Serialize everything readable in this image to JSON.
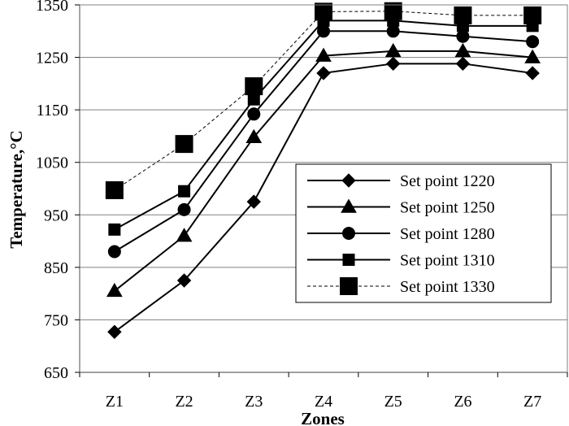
{
  "chart_data": {
    "type": "line",
    "title": "",
    "xlabel": "Zones",
    "ylabel": "Temperature,°C",
    "categories": [
      "Z1",
      "Z2",
      "Z3",
      "Z4",
      "Z5",
      "Z6",
      "Z7"
    ],
    "ylim": [
      650,
      1350
    ],
    "yticks": [
      650,
      750,
      850,
      950,
      1050,
      1150,
      1250,
      1350
    ],
    "grid": "horizontal",
    "legend_position": "right",
    "series": [
      {
        "name": "Set point 1220",
        "marker": "diamond",
        "line": "solid",
        "values": [
          727,
          825,
          975,
          1220,
          1238,
          1238,
          1220
        ]
      },
      {
        "name": "Set point 1250",
        "marker": "triangle",
        "line": "solid",
        "values": [
          805,
          910,
          1098,
          1253,
          1262,
          1262,
          1250
        ]
      },
      {
        "name": "Set point 1280",
        "marker": "circle",
        "line": "solid",
        "values": [
          880,
          960,
          1142,
          1300,
          1300,
          1290,
          1280
        ]
      },
      {
        "name": "Set point 1310",
        "marker": "square",
        "line": "solid",
        "values": [
          922,
          995,
          1170,
          1320,
          1320,
          1310,
          1310
        ]
      },
      {
        "name": "Set point 1330",
        "marker": "square-large",
        "line": "dashed",
        "values": [
          997,
          1085,
          1195,
          1337,
          1338,
          1330,
          1330
        ]
      }
    ],
    "colors": {
      "line": "#000000",
      "grid": "#808080",
      "background": "#ffffff"
    }
  }
}
